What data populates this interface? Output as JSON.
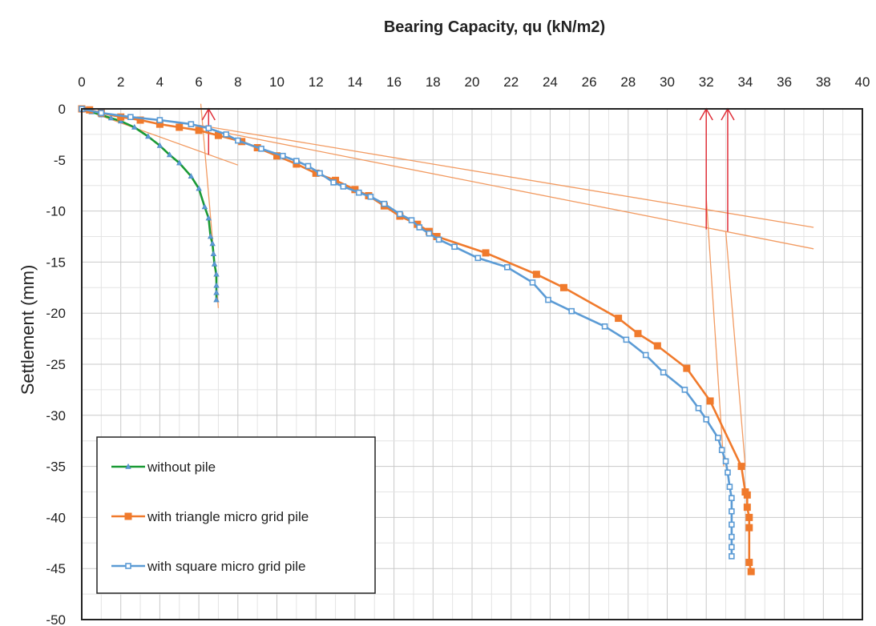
{
  "chart_data": {
    "type": "line",
    "title": "Bearing Capacity, qu (kN/m2)",
    "xlabel": "",
    "ylabel": "Settlement  (mm)",
    "xlim": [
      0,
      40
    ],
    "ylim": [
      -50,
      0
    ],
    "x_ticks": [
      "0",
      "2",
      "4",
      "6",
      "8",
      "10",
      "12",
      "14",
      "16",
      "18",
      "20",
      "22",
      "24",
      "26",
      "28",
      "30",
      "32",
      "34",
      "36",
      "38",
      "40"
    ],
    "y_ticks": [
      "0",
      "-5",
      "-10",
      "-15",
      "-20",
      "-25",
      "-30",
      "-35",
      "-40",
      "-45",
      "-50"
    ],
    "x_axis_position": "top",
    "grid": true,
    "legend_position": "bottom-left",
    "series": [
      {
        "name": "without pile",
        "color": "#1a9a35",
        "marker": "triangle",
        "points": [
          [
            0,
            0
          ],
          [
            0.2,
            -0.1
          ],
          [
            0.5,
            -0.3
          ],
          [
            1,
            -0.6
          ],
          [
            1.5,
            -0.9
          ],
          [
            2,
            -1.2
          ],
          [
            2.7,
            -1.8
          ],
          [
            3.4,
            -2.7
          ],
          [
            4,
            -3.6
          ],
          [
            4.5,
            -4.5
          ],
          [
            5,
            -5.3
          ],
          [
            5.6,
            -6.6
          ],
          [
            6,
            -7.8
          ],
          [
            6.3,
            -9.6
          ],
          [
            6.5,
            -10.7
          ],
          [
            6.6,
            -12.5
          ],
          [
            6.7,
            -13.2
          ],
          [
            6.75,
            -14.2
          ],
          [
            6.8,
            -15.2
          ],
          [
            6.9,
            -16.2
          ],
          [
            6.9,
            -17.3
          ],
          [
            6.9,
            -18.0
          ],
          [
            6.9,
            -18.7
          ]
        ]
      },
      {
        "name": "with triangle micro grid pile",
        "color": "#f07a2c",
        "marker": "square",
        "points": [
          [
            0,
            0
          ],
          [
            0.4,
            -0.1
          ],
          [
            1,
            -0.4
          ],
          [
            2,
            -0.8
          ],
          [
            3,
            -1.1
          ],
          [
            4,
            -1.5
          ],
          [
            5,
            -1.8
          ],
          [
            6,
            -2.1
          ],
          [
            7,
            -2.6
          ],
          [
            8.2,
            -3.2
          ],
          [
            9,
            -3.8
          ],
          [
            10,
            -4.6
          ],
          [
            11,
            -5.4
          ],
          [
            12,
            -6.3
          ],
          [
            13,
            -7
          ],
          [
            14,
            -7.9
          ],
          [
            14.7,
            -8.5
          ],
          [
            15.5,
            -9.5
          ],
          [
            16.3,
            -10.5
          ],
          [
            17.2,
            -11.3
          ],
          [
            17.8,
            -12
          ],
          [
            18.2,
            -12.5
          ],
          [
            20.7,
            -14.1
          ],
          [
            23.3,
            -16.2
          ],
          [
            24.7,
            -17.5
          ],
          [
            27.5,
            -20.5
          ],
          [
            28.5,
            -22
          ],
          [
            29.5,
            -23.2
          ],
          [
            31,
            -25.4
          ],
          [
            32.2,
            -28.6
          ],
          [
            33.8,
            -35
          ],
          [
            34,
            -37.5
          ],
          [
            34.1,
            -37.8
          ],
          [
            34.1,
            -39
          ],
          [
            34.2,
            -40
          ],
          [
            34.2,
            -41
          ],
          [
            34.2,
            -44.4
          ],
          [
            34.3,
            -45.3
          ]
        ]
      },
      {
        "name": "with square micro grid pile",
        "color": "#5b9bd5",
        "marker": "square-small",
        "points": [
          [
            0,
            0
          ],
          [
            1,
            -0.4
          ],
          [
            2.5,
            -0.8
          ],
          [
            4,
            -1.1
          ],
          [
            5.6,
            -1.5
          ],
          [
            6.5,
            -1.9
          ],
          [
            7.4,
            -2.5
          ],
          [
            8,
            -3.1
          ],
          [
            9.2,
            -3.9
          ],
          [
            10.3,
            -4.6
          ],
          [
            11,
            -5.1
          ],
          [
            11.6,
            -5.6
          ],
          [
            12.2,
            -6.3
          ],
          [
            12.9,
            -7.2
          ],
          [
            13.4,
            -7.6
          ],
          [
            14.2,
            -8.2
          ],
          [
            14.8,
            -8.6
          ],
          [
            15.5,
            -9.3
          ],
          [
            16.3,
            -10.3
          ],
          [
            16.9,
            -10.9
          ],
          [
            17.3,
            -11.6
          ],
          [
            17.8,
            -12.2
          ],
          [
            18.3,
            -12.8
          ],
          [
            19.1,
            -13.5
          ],
          [
            20.3,
            -14.6
          ],
          [
            21.8,
            -15.5
          ],
          [
            23.1,
            -17
          ],
          [
            23.9,
            -18.7
          ],
          [
            25.1,
            -19.8
          ],
          [
            26.8,
            -21.3
          ],
          [
            27.9,
            -22.6
          ],
          [
            28.9,
            -24.1
          ],
          [
            29.8,
            -25.8
          ],
          [
            30.9,
            -27.5
          ],
          [
            31.6,
            -29.3
          ],
          [
            32,
            -30.4
          ],
          [
            32.6,
            -32.2
          ],
          [
            32.8,
            -33.4
          ],
          [
            33,
            -34.5
          ],
          [
            33.1,
            -35.6
          ],
          [
            33.2,
            -37
          ],
          [
            33.3,
            -38.1
          ],
          [
            33.3,
            -39.4
          ],
          [
            33.3,
            -40.7
          ],
          [
            33.3,
            -41.9
          ],
          [
            33.3,
            -42.9
          ],
          [
            33.3,
            -43.8
          ]
        ]
      }
    ],
    "tangent_lines": [
      {
        "color": "#f29b62",
        "points": [
          [
            0,
            0
          ],
          [
            8,
            -5.5
          ]
        ]
      },
      {
        "color": "#f29b62",
        "points": [
          [
            6.1,
            0.5
          ],
          [
            7,
            -19.5
          ]
        ]
      },
      {
        "color": "#f29b62",
        "points": [
          [
            6,
            -1.6
          ],
          [
            37.5,
            -11.6
          ]
        ]
      },
      {
        "color": "#f29b62",
        "points": [
          [
            7.5,
            -2.4
          ],
          [
            37.5,
            -13.7
          ]
        ]
      },
      {
        "color": "#f29b62",
        "points": [
          [
            32,
            -8.7
          ],
          [
            32.9,
            -35
          ]
        ]
      },
      {
        "color": "#f29b62",
        "points": [
          [
            33,
            -12
          ],
          [
            34,
            -35
          ]
        ]
      }
    ],
    "arrows": [
      {
        "color": "#e0303a",
        "from": [
          6.5,
          -4.5
        ],
        "to": [
          6.5,
          0
        ]
      },
      {
        "color": "#e0303a",
        "from": [
          32,
          -11.8
        ],
        "to": [
          32,
          0
        ]
      },
      {
        "color": "#e0303a",
        "from": [
          33.1,
          -12
        ],
        "to": [
          33.1,
          0
        ]
      }
    ]
  }
}
